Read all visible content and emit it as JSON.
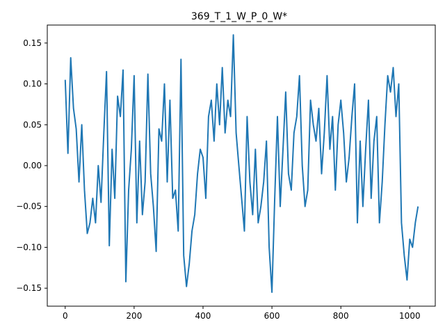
{
  "chart_data": {
    "type": "line",
    "title": "369_T_1_W_P_0_W*",
    "xlabel": "",
    "ylabel": "",
    "xlim": [
      -52,
      1074
    ],
    "ylim": [
      -0.172,
      0.172
    ],
    "xticks": [
      0,
      200,
      400,
      600,
      800,
      1000
    ],
    "xtick_labels": [
      "0",
      "200",
      "400",
      "600",
      "800",
      "1000"
    ],
    "yticks": [
      -0.15,
      -0.1,
      -0.05,
      0.0,
      0.05,
      0.1,
      0.15
    ],
    "ytick_labels": [
      "−0.15",
      "−0.10",
      "−0.05",
      "0.00",
      "0.05",
      "0.10",
      "0.15"
    ],
    "grid": false,
    "series": [
      {
        "color": "#1f77b4",
        "x_start": 0,
        "x_step": 8,
        "values": [
          0.105,
          0.015,
          0.132,
          0.07,
          0.045,
          -0.02,
          0.05,
          -0.03,
          -0.083,
          -0.07,
          -0.04,
          -0.07,
          0.0,
          -0.045,
          0.04,
          0.115,
          -0.098,
          0.02,
          -0.04,
          0.085,
          0.06,
          0.117,
          -0.142,
          -0.03,
          0.02,
          0.11,
          -0.07,
          0.03,
          -0.06,
          -0.02,
          0.112,
          -0.01,
          -0.05,
          -0.105,
          0.045,
          0.03,
          0.1,
          -0.02,
          0.08,
          -0.04,
          -0.03,
          -0.08,
          0.13,
          -0.11,
          -0.148,
          -0.12,
          -0.08,
          -0.06,
          -0.01,
          0.02,
          0.01,
          -0.04,
          0.06,
          0.08,
          0.03,
          0.1,
          0.05,
          0.12,
          0.04,
          0.08,
          0.06,
          0.16,
          0.04,
          0.0,
          -0.04,
          -0.08,
          0.06,
          -0.02,
          -0.06,
          0.02,
          -0.07,
          -0.05,
          -0.02,
          0.03,
          -0.1,
          -0.155,
          -0.04,
          0.06,
          -0.05,
          0.02,
          0.09,
          -0.01,
          -0.03,
          0.04,
          0.06,
          0.11,
          0.0,
          -0.05,
          -0.03,
          0.08,
          0.05,
          0.03,
          0.07,
          -0.01,
          0.04,
          0.11,
          0.02,
          0.06,
          -0.03,
          0.05,
          0.08,
          0.04,
          -0.02,
          0.01,
          0.06,
          0.1,
          -0.07,
          0.03,
          -0.05,
          0.02,
          0.08,
          -0.04,
          0.03,
          0.06,
          -0.07,
          -0.02,
          0.05,
          0.11,
          0.09,
          0.12,
          0.06,
          0.1,
          -0.07,
          -0.11,
          -0.14,
          -0.09,
          -0.1,
          -0.07,
          -0.05
        ]
      }
    ]
  }
}
